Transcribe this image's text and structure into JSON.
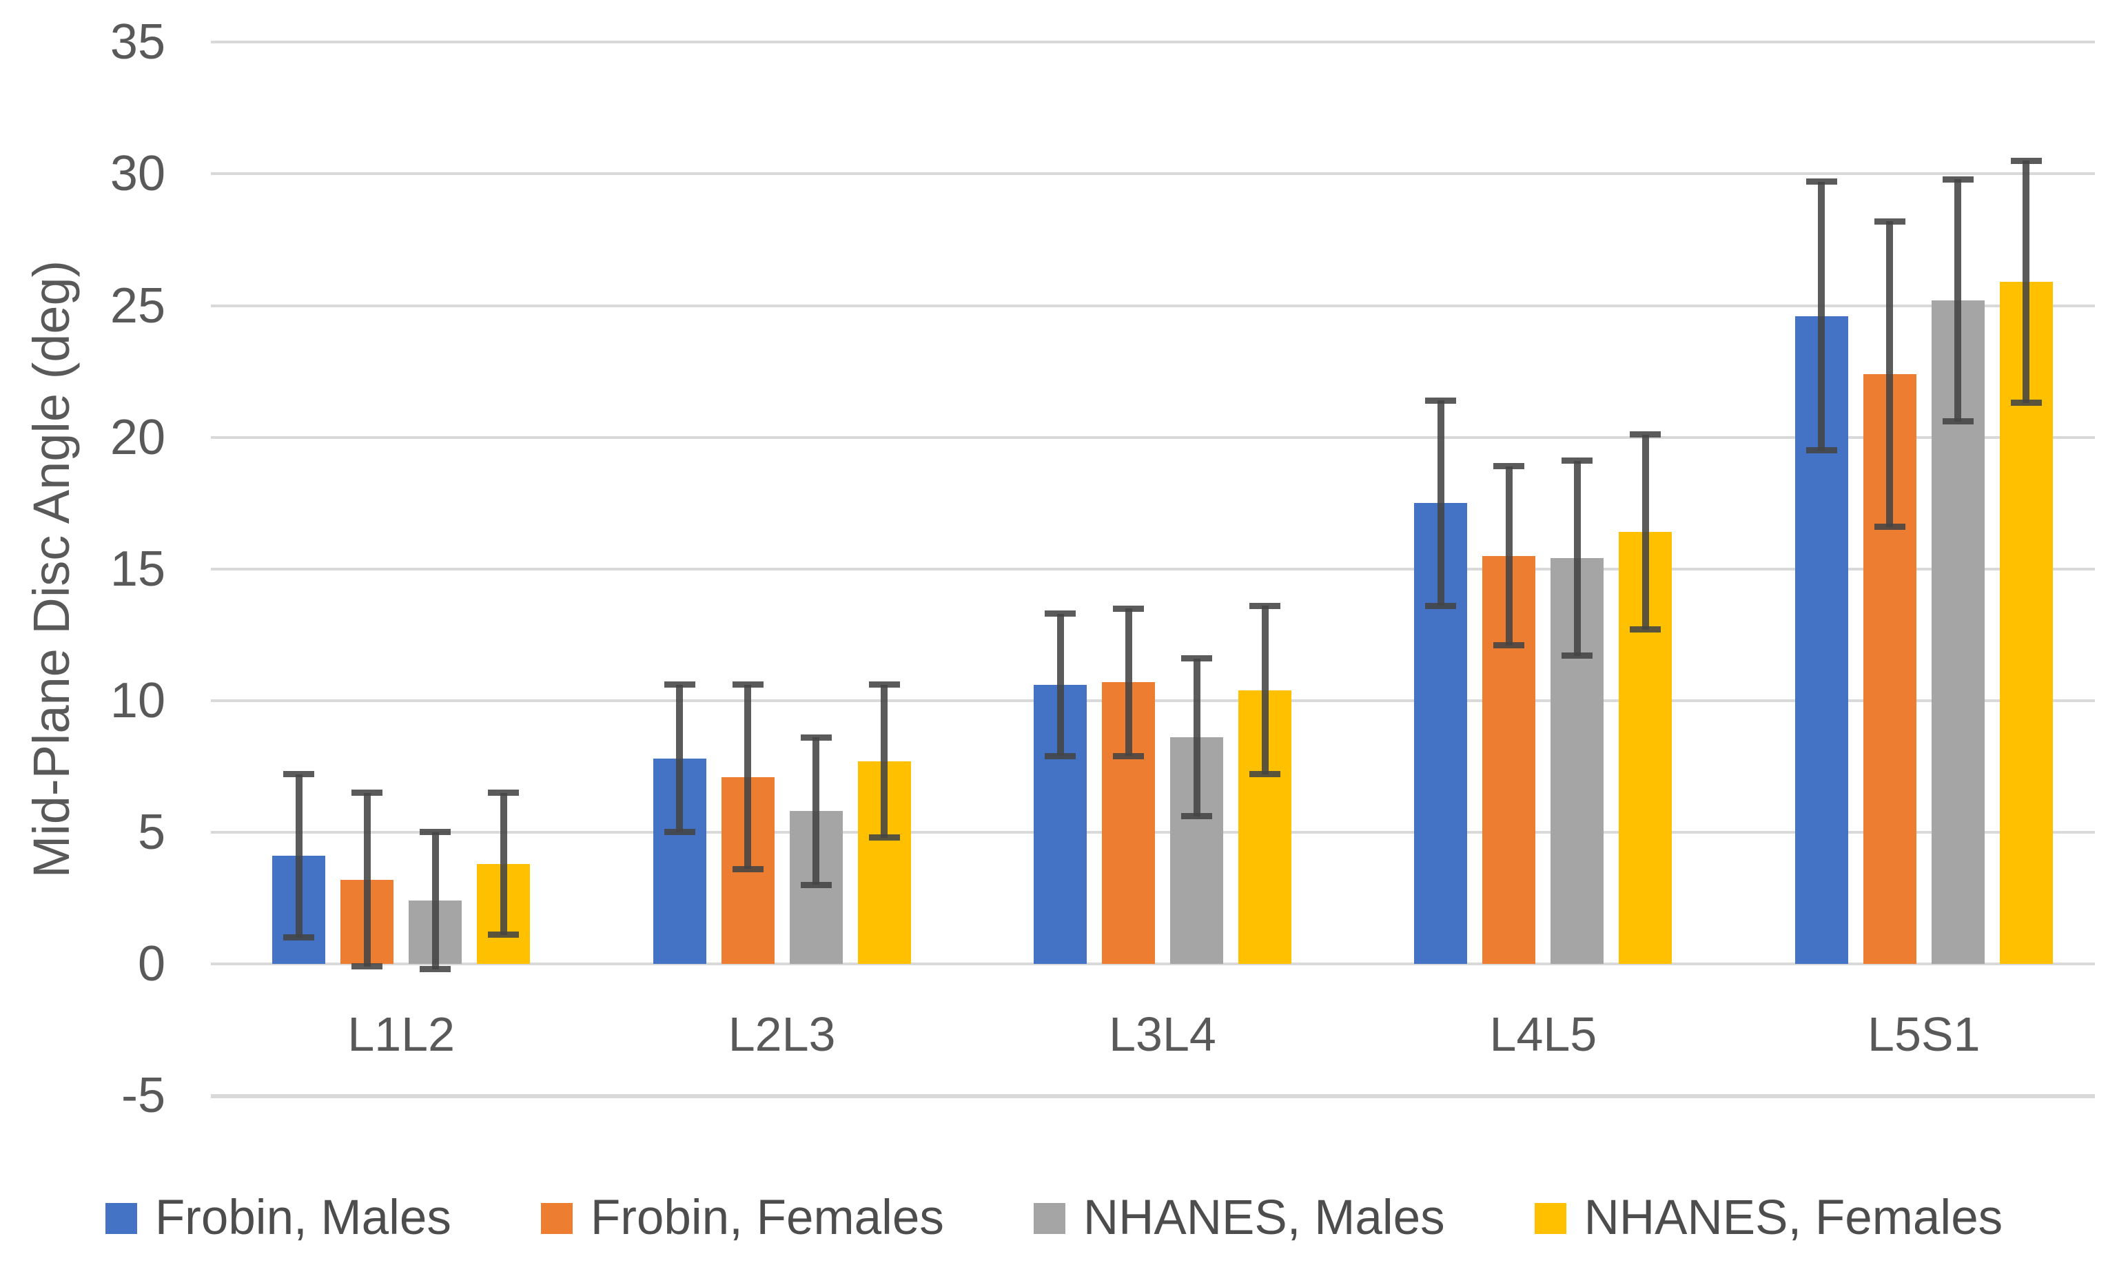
{
  "chart_data": {
    "type": "bar",
    "title": "",
    "xlabel": "",
    "ylabel": "Mid-Plane Disc Angle (deg)",
    "ylim": [
      -5,
      35
    ],
    "ytick_step": 5,
    "yticks": [
      35,
      30,
      25,
      20,
      15,
      10,
      5,
      0,
      -5
    ],
    "grid": true,
    "legend_position": "bottom",
    "error_bars": "symmetric, dark gray, capped",
    "categories": [
      "L1L2",
      "L2L3",
      "L3L4",
      "L4L5",
      "L5S1"
    ],
    "series": [
      {
        "name": "Frobin, Males",
        "color": "#4472C4",
        "values": [
          4.1,
          7.8,
          10.6,
          17.5,
          24.6
        ],
        "errors": [
          3.1,
          2.8,
          2.7,
          3.9,
          5.1
        ]
      },
      {
        "name": "Frobin, Females",
        "color": "#ED7D31",
        "values": [
          3.2,
          7.1,
          10.7,
          15.5,
          22.4
        ],
        "errors": [
          3.3,
          3.5,
          2.8,
          3.4,
          5.8
        ]
      },
      {
        "name": "NHANES, Males",
        "color": "#A5A5A5",
        "values": [
          2.4,
          5.8,
          8.6,
          15.4,
          25.2
        ],
        "errors": [
          2.6,
          2.8,
          3.0,
          3.7,
          4.6
        ]
      },
      {
        "name": "NHANES, Females",
        "color": "#FFC000",
        "values": [
          3.8,
          7.7,
          10.4,
          16.4,
          25.9
        ],
        "errors": [
          2.7,
          2.9,
          3.2,
          3.7,
          4.6
        ]
      }
    ],
    "colors": {
      "gridline": "#d9d9d9",
      "axis_text": "#595959",
      "legend_text": "#4d4d4d",
      "error_bar": "#444444",
      "background": "#ffffff"
    }
  }
}
